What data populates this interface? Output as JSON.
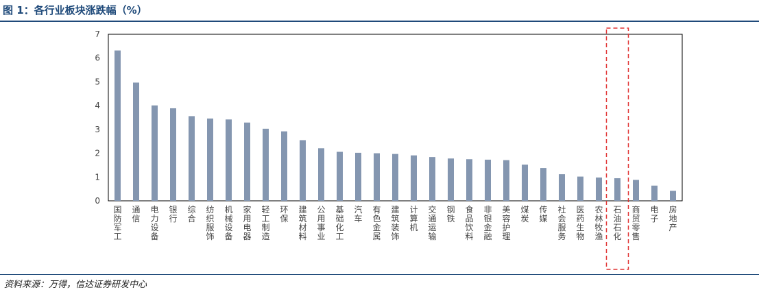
{
  "title": "图 1：各行业板块涨跌幅（%）",
  "source": "资料来源：万得，信达证券研发中心",
  "colors": {
    "bar": "#8496b0",
    "frame": "#000000",
    "highlight": "#e03030",
    "title": "#1f4a7a"
  },
  "chart_data": {
    "type": "bar",
    "categories": [
      "国防军工",
      "通信",
      "电力设备",
      "银行",
      "综合",
      "纺织服饰",
      "机械设备",
      "家用电器",
      "轻工制造",
      "环保",
      "建筑材料",
      "公用事业",
      "基础化工",
      "汽车",
      "有色金属",
      "建筑装饰",
      "计算机",
      "交通运输",
      "钢铁",
      "食品饮料",
      "非银金融",
      "美容护理",
      "煤炭",
      "传媒",
      "社会服务",
      "医药生物",
      "农林牧渔",
      "石油石化",
      "商贸零售",
      "电子",
      "房地产"
    ],
    "values": [
      6.32,
      4.97,
      4.01,
      3.89,
      3.56,
      3.46,
      3.42,
      3.29,
      3.03,
      2.92,
      2.55,
      2.21,
      2.06,
      2.02,
      2.0,
      1.97,
      1.91,
      1.84,
      1.78,
      1.75,
      1.73,
      1.71,
      1.52,
      1.38,
      1.12,
      1.02,
      0.98,
      0.95,
      0.88,
      0.64,
      0.42
    ],
    "yticks": [
      "0",
      "1",
      "2",
      "3",
      "4",
      "5",
      "6",
      "7"
    ],
    "ylim": [
      0,
      7
    ],
    "grid": false,
    "highlight_category": "石油石化"
  }
}
